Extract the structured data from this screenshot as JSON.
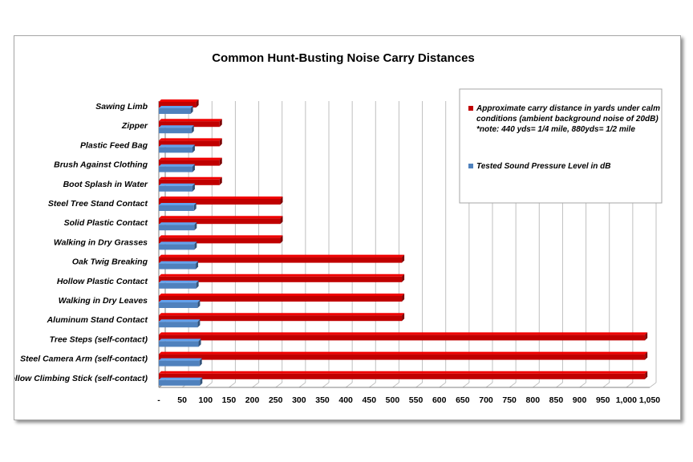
{
  "chart_data": {
    "type": "bar",
    "orientation": "horizontal",
    "title": "Common Hunt-Busting Noise Carry Distances",
    "categories": [
      "Sawing Limb",
      "Zipper",
      "Plastic Feed Bag",
      "Brush Against Clothing",
      "Boot Splash in Water",
      "Steel Tree Stand Contact",
      "Solid Plastic Contact",
      "Walking in Dry Grasses",
      "Oak Twig Breaking",
      "Hollow Plastic Contact",
      "Walking in Dry Leaves",
      "Aluminum Stand Contact",
      "Tree Steps (self-contact)",
      "Steel Camera Arm (self-contact)",
      "Hollow Climbing Stick (self-contact)"
    ],
    "series": [
      {
        "name": "Approximate carry distance in yards under calm conditions (ambient background noise of 20dB)",
        "note": "*note: 440 yds= 1/4 mile, 880yds= 1/2 mile",
        "color": "#c00000",
        "values": [
          80,
          130,
          130,
          130,
          130,
          260,
          260,
          260,
          520,
          520,
          520,
          520,
          1040,
          1040,
          1040
        ]
      },
      {
        "name": "Tested Sound Pressure Level in dB",
        "color": "#4f81bd",
        "values": [
          68,
          70,
          72,
          72,
          72,
          75,
          76,
          76,
          79,
          80,
          83,
          83,
          85,
          87,
          88
        ]
      }
    ],
    "xlim": [
      0,
      1050
    ],
    "x_ticks": [
      "-",
      "50",
      "100",
      "150",
      "200",
      "250",
      "300",
      "350",
      "400",
      "450",
      "500",
      "550",
      "600",
      "650",
      "700",
      "750",
      "800",
      "850",
      "900",
      "950",
      "1,000",
      "1,050"
    ],
    "grid": "vertical",
    "legend_position": "top-right"
  }
}
